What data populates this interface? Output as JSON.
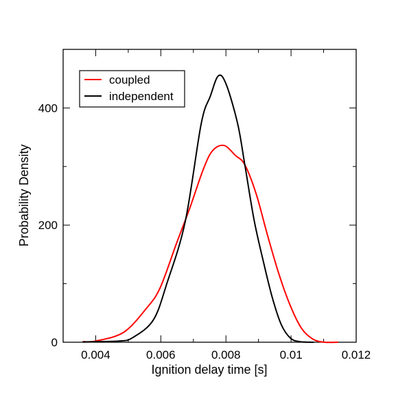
{
  "chart_data": {
    "type": "line",
    "title": "",
    "xlabel": "Ignition delay time [s]",
    "ylabel": "Probability Density",
    "xlim": [
      0.003,
      0.012
    ],
    "ylim": [
      0,
      500
    ],
    "xticks": [
      0.004,
      0.006,
      0.008,
      0.01,
      0.012
    ],
    "xtick_labels": [
      "0.004",
      "0.006",
      "0.008",
      "0.01",
      "0.012"
    ],
    "yticks": [
      0,
      200,
      400
    ],
    "ytick_labels": [
      "0",
      "200",
      "400"
    ],
    "grid": false,
    "legend_position": "top-left",
    "series": [
      {
        "name": "coupled",
        "color": "#ff0000",
        "x": [
          0.0036,
          0.004,
          0.00486,
          0.00556,
          0.00598,
          0.00647,
          0.00689,
          0.00731,
          0.00759,
          0.00794,
          0.00829,
          0.00858,
          0.00893,
          0.00928,
          0.00963,
          0.00998,
          0.01033,
          0.01068,
          0.01103,
          0.01145
        ],
        "y": [
          1,
          2,
          17,
          58,
          93,
          167,
          229,
          296,
          327,
          336,
          319,
          303,
          253,
          182,
          116,
          62,
          23,
          5,
          0,
          0
        ]
      },
      {
        "name": "independent",
        "color": "#000000",
        "x": [
          0.0036,
          0.00472,
          0.00514,
          0.00577,
          0.00619,
          0.00675,
          0.00724,
          0.00752,
          0.00777,
          0.00801,
          0.00836,
          0.00858,
          0.00886,
          0.00914,
          0.00942,
          0.0097,
          0.00998,
          0.01026,
          0.0107
        ],
        "y": [
          0.5,
          2,
          8,
          38,
          101,
          206,
          373,
          420,
          455,
          440,
          373,
          303,
          210,
          140,
          77,
          30,
          7,
          1,
          0
        ]
      }
    ]
  }
}
